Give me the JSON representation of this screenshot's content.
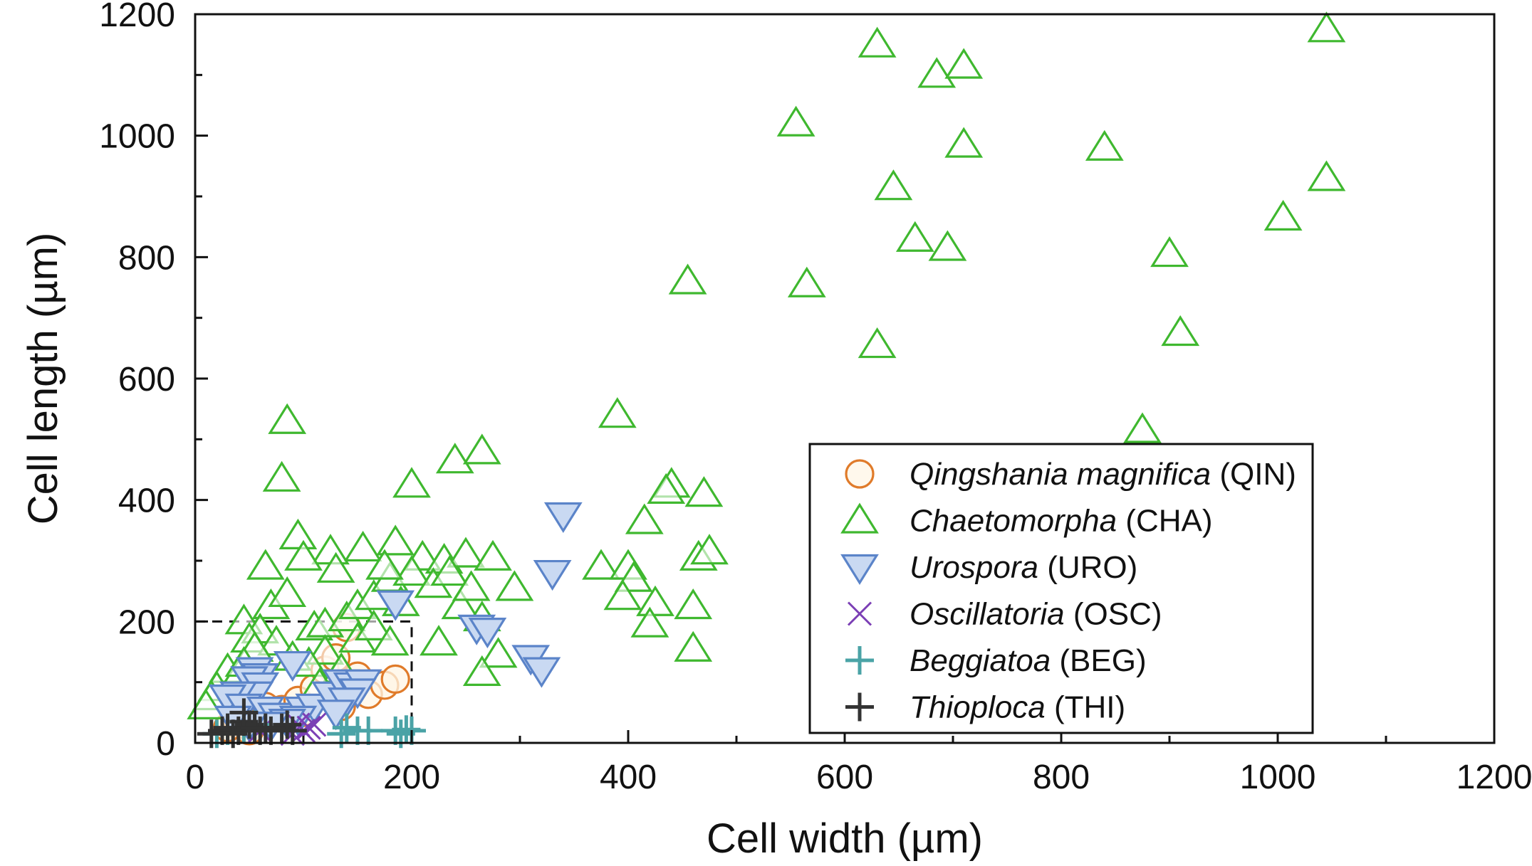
{
  "chart_data": {
    "type": "scatter",
    "xlabel": "Cell width (µm)",
    "ylabel": "Cell length (µm)",
    "xlim": [
      0,
      1200
    ],
    "ylim": [
      0,
      1200
    ],
    "xticks": [
      0,
      200,
      400,
      600,
      800,
      1000,
      1200
    ],
    "yticks": [
      0,
      200,
      400,
      600,
      800,
      1000,
      1200
    ],
    "xtick_labels": [
      "0",
      "200",
      "400",
      "600",
      "800",
      "1000",
      "1200"
    ],
    "ytick_labels": [
      "0",
      "200",
      "400",
      "600",
      "800",
      "1000",
      "1200"
    ],
    "grid": false,
    "legend_position": "bottom-right",
    "highlight_box": {
      "x": [
        0,
        200
      ],
      "y": [
        0,
        200
      ],
      "style": "dashed"
    },
    "series": [
      {
        "name": "Qingshania magnifica",
        "abbr": "(QIN)",
        "marker": "circle-open",
        "color": "#e07b2a",
        "fill": "#fff6e6",
        "points": [
          [
            40,
            30
          ],
          [
            55,
            45
          ],
          [
            65,
            60
          ],
          [
            80,
            55
          ],
          [
            95,
            70
          ],
          [
            110,
            90
          ],
          [
            120,
            120
          ],
          [
            130,
            140
          ],
          [
            140,
            190
          ],
          [
            150,
            110
          ],
          [
            160,
            80
          ],
          [
            175,
            95
          ],
          [
            185,
            105
          ],
          [
            135,
            60
          ],
          [
            100,
            50
          ],
          [
            70,
            40
          ],
          [
            50,
            20
          ],
          [
            30,
            25
          ]
        ]
      },
      {
        "name": "Chaetomorpha",
        "abbr": "(CHA)",
        "marker": "triangle-up-open",
        "color": "#3fb82f",
        "fill": "#ffffff",
        "points": [
          [
            630,
            1150
          ],
          [
            1045,
            1175
          ],
          [
            685,
            1100
          ],
          [
            710,
            1115
          ],
          [
            555,
            1020
          ],
          [
            710,
            985
          ],
          [
            840,
            980
          ],
          [
            1045,
            930
          ],
          [
            645,
            915
          ],
          [
            1005,
            865
          ],
          [
            665,
            830
          ],
          [
            695,
            815
          ],
          [
            900,
            805
          ],
          [
            455,
            760
          ],
          [
            565,
            755
          ],
          [
            630,
            655
          ],
          [
            910,
            675
          ],
          [
            390,
            540
          ],
          [
            875,
            515
          ],
          [
            85,
            530
          ],
          [
            80,
            435
          ],
          [
            200,
            425
          ],
          [
            240,
            465
          ],
          [
            265,
            480
          ],
          [
            440,
            425
          ],
          [
            470,
            410
          ],
          [
            435,
            415
          ],
          [
            415,
            365
          ],
          [
            95,
            340
          ],
          [
            185,
            330
          ],
          [
            155,
            320
          ],
          [
            125,
            315
          ],
          [
            100,
            305
          ],
          [
            65,
            290
          ],
          [
            45,
            200
          ],
          [
            210,
            305
          ],
          [
            230,
            300
          ],
          [
            250,
            310
          ],
          [
            275,
            305
          ],
          [
            295,
            255
          ],
          [
            375,
            290
          ],
          [
            400,
            290
          ],
          [
            405,
            270
          ],
          [
            395,
            240
          ],
          [
            425,
            230
          ],
          [
            420,
            195
          ],
          [
            460,
            225
          ],
          [
            465,
            305
          ],
          [
            475,
            315
          ],
          [
            460,
            155
          ],
          [
            225,
            165
          ],
          [
            245,
            225
          ],
          [
            265,
            205
          ],
          [
            280,
            145
          ],
          [
            265,
            115
          ],
          [
            70,
            225
          ],
          [
            85,
            245
          ],
          [
            110,
            190
          ],
          [
            120,
            195
          ],
          [
            140,
            205
          ],
          [
            150,
            225
          ],
          [
            165,
            240
          ],
          [
            180,
            270
          ],
          [
            200,
            280
          ],
          [
            220,
            260
          ],
          [
            235,
            280
          ],
          [
            255,
            255
          ],
          [
            120,
            150
          ],
          [
            135,
            120
          ],
          [
            150,
            170
          ],
          [
            165,
            190
          ],
          [
            180,
            165
          ],
          [
            60,
            185
          ],
          [
            50,
            170
          ],
          [
            75,
            165
          ],
          [
            90,
            140
          ],
          [
            105,
            130
          ],
          [
            30,
            120
          ],
          [
            40,
            110
          ],
          [
            20,
            90
          ],
          [
            15,
            75
          ],
          [
            10,
            60
          ],
          [
            55,
            155
          ],
          [
            45,
            130
          ],
          [
            130,
            285
          ],
          [
            190,
            230
          ],
          [
            175,
            290
          ],
          [
            115,
            95
          ]
        ]
      },
      {
        "name": "Urospora",
        "abbr": "(URO)",
        "marker": "triangle-down",
        "color": "#5b84c9",
        "fill": "#c9d9f2",
        "points": [
          [
            340,
            375
          ],
          [
            330,
            280
          ],
          [
            185,
            230
          ],
          [
            260,
            190
          ],
          [
            270,
            185
          ],
          [
            310,
            140
          ],
          [
            320,
            120
          ],
          [
            90,
            130
          ],
          [
            55,
            120
          ],
          [
            60,
            110
          ],
          [
            50,
            105
          ],
          [
            60,
            95
          ],
          [
            55,
            80
          ],
          [
            40,
            80
          ],
          [
            30,
            75
          ],
          [
            45,
            60
          ],
          [
            65,
            55
          ],
          [
            75,
            45
          ],
          [
            100,
            55
          ],
          [
            110,
            60
          ],
          [
            125,
            80
          ],
          [
            135,
            100
          ],
          [
            145,
            95
          ],
          [
            155,
            100
          ],
          [
            150,
            85
          ],
          [
            140,
            70
          ],
          [
            130,
            50
          ],
          [
            95,
            40
          ],
          [
            85,
            35
          ],
          [
            70,
            30
          ],
          [
            50,
            30
          ],
          [
            35,
            40
          ]
        ]
      },
      {
        "name": "Oscillatoria",
        "abbr": "(OSC)",
        "marker": "x",
        "color": "#7b3fb5",
        "fill": "none",
        "points": [
          [
            105,
            25
          ],
          [
            100,
            20
          ],
          [
            95,
            30
          ],
          [
            110,
            30
          ],
          [
            90,
            15
          ],
          [
            60,
            20
          ]
        ]
      },
      {
        "name": "Beggiatoa",
        "abbr": "(BEG)",
        "marker": "plus",
        "color": "#4aa3a6",
        "fill": "none",
        "points": [
          [
            140,
            25
          ],
          [
            150,
            20
          ],
          [
            135,
            15
          ],
          [
            160,
            20
          ],
          [
            185,
            20
          ],
          [
            195,
            22
          ],
          [
            190,
            15
          ],
          [
            200,
            20
          ],
          [
            55,
            30
          ],
          [
            45,
            25
          ],
          [
            30,
            20
          ],
          [
            20,
            15
          ]
        ]
      },
      {
        "name": "Thioploca",
        "abbr": "(THI)",
        "marker": "plus",
        "color": "#333333",
        "fill": "none",
        "points": [
          [
            15,
            15
          ],
          [
            25,
            20
          ],
          [
            30,
            25
          ],
          [
            40,
            20
          ],
          [
            45,
            35
          ],
          [
            50,
            30
          ],
          [
            55,
            25
          ],
          [
            60,
            20
          ],
          [
            65,
            25
          ],
          [
            70,
            20
          ],
          [
            80,
            25
          ],
          [
            85,
            30
          ],
          [
            90,
            20
          ],
          [
            35,
            15
          ],
          [
            45,
            50
          ]
        ]
      }
    ]
  }
}
